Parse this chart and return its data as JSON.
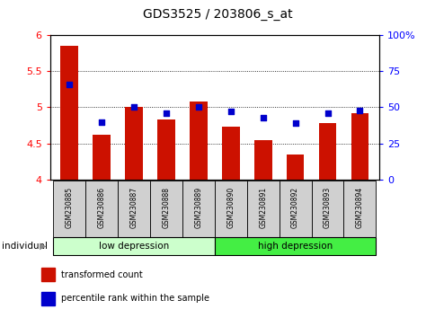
{
  "title": "GDS3525 / 203806_s_at",
  "samples": [
    "GSM230885",
    "GSM230886",
    "GSM230887",
    "GSM230888",
    "GSM230889",
    "GSM230890",
    "GSM230891",
    "GSM230892",
    "GSM230893",
    "GSM230894"
  ],
  "transformed_count": [
    5.85,
    4.62,
    5.0,
    4.83,
    5.08,
    4.73,
    4.55,
    4.35,
    4.78,
    4.92
  ],
  "percentile_rank": [
    66,
    40,
    50,
    46,
    50,
    47,
    43,
    39,
    46,
    48
  ],
  "ylim_left": [
    4.0,
    6.0
  ],
  "ylim_right": [
    0,
    100
  ],
  "yticks_left": [
    4.0,
    4.5,
    5.0,
    5.5,
    6.0
  ],
  "yticks_right": [
    0,
    25,
    50,
    75,
    100
  ],
  "ytick_labels_left": [
    "4",
    "4.5",
    "5",
    "5.5",
    "6"
  ],
  "ytick_labels_right": [
    "0",
    "25",
    "50",
    "75",
    "100%"
  ],
  "bar_color": "#cc1100",
  "dot_color": "#0000cc",
  "bar_width": 0.55,
  "dot_size": 22,
  "background_color": "white",
  "low_group_label": "low depression",
  "high_group_label": "high depression",
  "low_group_color": "#ccffcc",
  "high_group_color": "#44ee44",
  "sample_box_color": "#d0d0d0",
  "legend_items": [
    {
      "label": "transformed count",
      "color": "#cc1100"
    },
    {
      "label": "percentile rank within the sample",
      "color": "#0000cc"
    }
  ],
  "individual_label": "individual"
}
